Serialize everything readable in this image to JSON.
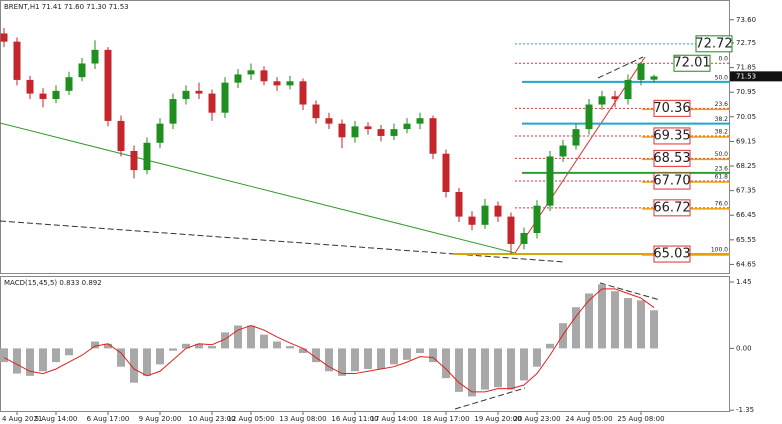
{
  "chart_data": [
    {
      "type": "candlestick",
      "title": "BRENT,H1  71.41 71.60 71.30 71.53",
      "up_color": "#1f8f1f",
      "down_color": "#c4262b",
      "open": [
        73.1,
        72.8,
        71.4,
        70.9,
        70.7,
        71.0,
        71.5,
        72.0,
        72.5,
        69.9,
        68.8,
        68.1,
        69.1,
        69.8,
        70.7,
        71.0,
        70.9,
        70.2,
        71.3,
        71.6,
        71.75,
        71.35,
        71.2,
        71.35,
        70.5,
        70.0,
        69.8,
        69.3,
        69.7,
        69.6,
        69.35,
        69.6,
        69.8,
        70.0,
        68.7,
        67.3,
        66.4,
        66.1,
        66.8,
        66.4,
        65.4,
        65.8,
        66.8,
        68.6,
        69.0,
        69.6,
        70.5,
        70.8,
        70.7,
        71.4,
        71.41
      ],
      "high": [
        73.3,
        72.95,
        71.55,
        71.1,
        71.2,
        71.7,
        72.2,
        72.85,
        72.6,
        70.1,
        69.0,
        69.3,
        70.0,
        70.9,
        71.2,
        71.3,
        71.05,
        71.5,
        71.8,
        72.0,
        71.9,
        71.5,
        71.55,
        71.45,
        70.65,
        70.2,
        69.95,
        69.9,
        69.85,
        69.75,
        69.8,
        70.0,
        70.2,
        70.1,
        68.85,
        67.45,
        66.6,
        67.05,
        66.95,
        66.55,
        66.0,
        67.0,
        68.8,
        69.2,
        69.8,
        70.7,
        71.0,
        71.0,
        71.6,
        72.05,
        71.6
      ],
      "low": [
        72.6,
        71.2,
        70.7,
        70.4,
        70.55,
        70.85,
        71.35,
        71.8,
        69.7,
        68.6,
        67.8,
        67.95,
        68.9,
        69.6,
        70.5,
        70.7,
        69.9,
        70.0,
        71.1,
        71.4,
        71.2,
        71.0,
        71.05,
        70.3,
        69.8,
        69.6,
        68.9,
        69.1,
        69.4,
        69.15,
        69.2,
        69.45,
        69.6,
        68.5,
        67.1,
        66.2,
        65.9,
        65.95,
        66.2,
        65.03,
        65.2,
        65.6,
        66.6,
        68.4,
        68.85,
        69.4,
        70.3,
        70.4,
        70.5,
        71.2,
        71.3
      ],
      "close": [
        72.8,
        71.4,
        70.9,
        70.7,
        71.0,
        71.5,
        72.0,
        72.5,
        69.9,
        68.8,
        68.1,
        69.1,
        69.8,
        70.7,
        71.0,
        70.9,
        70.2,
        71.3,
        71.6,
        71.75,
        71.35,
        71.2,
        71.35,
        70.5,
        70.0,
        69.8,
        69.3,
        69.7,
        69.6,
        69.35,
        69.6,
        69.8,
        70.0,
        68.7,
        67.3,
        66.4,
        66.1,
        66.8,
        66.4,
        65.4,
        65.8,
        66.8,
        68.6,
        69.0,
        69.6,
        70.5,
        70.8,
        70.7,
        71.4,
        72.0,
        71.53
      ],
      "ylim": [
        64.3,
        74.25
      ],
      "yticks": [
        {
          "value": 73.6,
          "label": "73.60"
        },
        72.75,
        71.85,
        70.95,
        70.05,
        69.15,
        68.25,
        67.35,
        66.45,
        65.55,
        64.65
      ],
      "fib_levels": [
        {
          "value": 72.72,
          "ratio": "61.8",
          "line_color": "#1fa9c9",
          "text_color": "#1a8a1a",
          "label": "72.72"
        },
        {
          "value": 72.01,
          "ratio": "0.0",
          "line_color": "#e03030",
          "text_color": "#1a8a1a",
          "label": "72.01"
        },
        {
          "value": 71.33,
          "ratio": "50.0",
          "line_color": "#1fa9c9"
        },
        {
          "value": 70.36,
          "ratio": "23.6",
          "line_color": "#e03030",
          "text_color": "#e03030",
          "label": "70.36"
        },
        {
          "value": 69.8,
          "ratio": "38.2",
          "line_color": "#1fa9c9"
        },
        {
          "value": 69.35,
          "ratio": "38.2",
          "line_color": "#e03030",
          "text_color": "#e03030",
          "label": "69.35"
        },
        {
          "value": 68.53,
          "ratio": "50.0",
          "line_color": "#e03030",
          "text_color": "#e03030",
          "label": "68.53"
        },
        {
          "value": 68.0,
          "ratio": "23.6",
          "line_color": "#2e9e2e"
        },
        {
          "value": 67.7,
          "ratio": "61.8",
          "line_color": "#e03030",
          "text_color": "#e03030",
          "label": "67.70"
        },
        {
          "value": 66.72,
          "ratio": "76.0",
          "line_color": "#e03030",
          "text_color": "#e03030",
          "label": "66.72"
        },
        {
          "value": 65.03,
          "ratio": "100.0",
          "line_color": "#d4a800",
          "text_color": "#e03030",
          "label": "65.03"
        }
      ]
    },
    {
      "type": "macd",
      "title": "MACD(15,45,5) 0.833 0.892",
      "categories": [
        null,
        "4 Aug 2021",
        null,
        null,
        "5 Aug 14:00",
        null,
        null,
        null,
        "6 Aug 17:00",
        null,
        null,
        null,
        "9 Aug 20:00",
        null,
        null,
        null,
        "10 Aug 23:00",
        null,
        null,
        "12 Aug 05:00",
        null,
        null,
        null,
        "13 Aug 08:00",
        null,
        null,
        null,
        "16 Aug 11:00",
        null,
        null,
        "17 Aug 14:00",
        null,
        null,
        null,
        "18 Aug 17:00",
        null,
        null,
        null,
        "19 Aug 20:00",
        null,
        null,
        "20 Aug 23:00",
        null,
        null,
        null,
        "24 Aug 05:00",
        null,
        null,
        null,
        "25 Aug 08:00",
        null
      ],
      "histogram": {
        "color": "#a8a8a8",
        "values": [
          -0.3,
          -0.55,
          -0.6,
          -0.5,
          -0.3,
          -0.15,
          0.0,
          0.15,
          0.1,
          -0.4,
          -0.75,
          -0.6,
          -0.35,
          -0.05,
          0.1,
          0.1,
          0.05,
          0.35,
          0.5,
          0.5,
          0.3,
          0.15,
          0.05,
          -0.1,
          -0.3,
          -0.5,
          -0.6,
          -0.5,
          -0.45,
          -0.45,
          -0.35,
          -0.25,
          -0.1,
          -0.3,
          -0.65,
          -0.95,
          -1.05,
          -0.9,
          -0.85,
          -0.9,
          -0.7,
          -0.4,
          0.1,
          0.55,
          0.9,
          1.2,
          1.4,
          1.25,
          1.1,
          1.05,
          0.833
        ]
      },
      "signal": {
        "color": "#e02020",
        "values": [
          -0.2,
          -0.35,
          -0.5,
          -0.55,
          -0.45,
          -0.3,
          -0.15,
          0.05,
          0.1,
          -0.1,
          -0.45,
          -0.6,
          -0.5,
          -0.25,
          0.0,
          0.1,
          0.08,
          0.2,
          0.4,
          0.5,
          0.4,
          0.25,
          0.12,
          0.0,
          -0.2,
          -0.4,
          -0.55,
          -0.55,
          -0.5,
          -0.45,
          -0.4,
          -0.3,
          -0.18,
          -0.2,
          -0.45,
          -0.75,
          -0.95,
          -0.95,
          -0.88,
          -0.88,
          -0.8,
          -0.55,
          -0.15,
          0.3,
          0.7,
          1.05,
          1.3,
          1.3,
          1.2,
          1.1,
          0.892
        ]
      },
      "ylim": [
        -1.39,
        1.56
      ],
      "yticks": [
        1.45,
        {
          "value": 0,
          "label": "0.00"
        },
        -1.35
      ]
    }
  ]
}
